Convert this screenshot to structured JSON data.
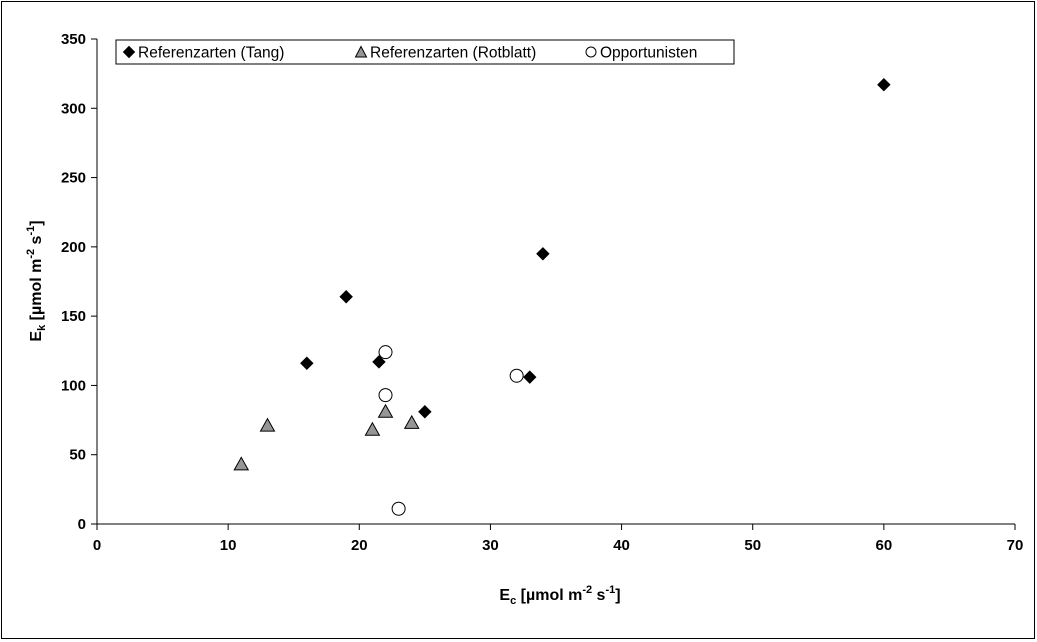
{
  "chart_data": {
    "type": "scatter",
    "xlim": [
      0,
      70
    ],
    "ylim": [
      0,
      350
    ],
    "x_ticks": [
      0,
      10,
      20,
      30,
      40,
      50,
      60,
      70
    ],
    "y_ticks": [
      0,
      50,
      100,
      150,
      200,
      250,
      300,
      350
    ],
    "grid": false,
    "legend_position": "top-left",
    "xlabel": {
      "base": "E",
      "sub": "c",
      "pre": " [µmol m",
      "sup1": "-2",
      "mid": " s",
      "sup2": "-1",
      "post": "]"
    },
    "ylabel": {
      "base": "E",
      "sub": "k",
      "pre": " [µmol m",
      "sup1": "-2",
      "mid": " s",
      "sup2": "-1",
      "post": "]"
    },
    "series": [
      {
        "name": "Referenzarten (Tang)",
        "marker": "diamond",
        "fill": "#000000",
        "points": [
          {
            "x": 16,
            "y": 116
          },
          {
            "x": 19,
            "y": 164
          },
          {
            "x": 21.5,
            "y": 117
          },
          {
            "x": 25,
            "y": 81
          },
          {
            "x": 33,
            "y": 106
          },
          {
            "x": 34,
            "y": 195
          },
          {
            "x": 60,
            "y": 317
          }
        ]
      },
      {
        "name": "Referenzarten (Rotblatt)",
        "marker": "triangle",
        "fill": "#969696",
        "points": [
          {
            "x": 11,
            "y": 43
          },
          {
            "x": 13,
            "y": 71
          },
          {
            "x": 21,
            "y": 68
          },
          {
            "x": 22,
            "y": 81
          },
          {
            "x": 24,
            "y": 73
          }
        ]
      },
      {
        "name": "Opportunisten",
        "marker": "circle",
        "fill": "#ffffff",
        "points": [
          {
            "x": 22,
            "y": 124
          },
          {
            "x": 22,
            "y": 93
          },
          {
            "x": 23,
            "y": 11
          },
          {
            "x": 32,
            "y": 107
          }
        ]
      }
    ]
  }
}
